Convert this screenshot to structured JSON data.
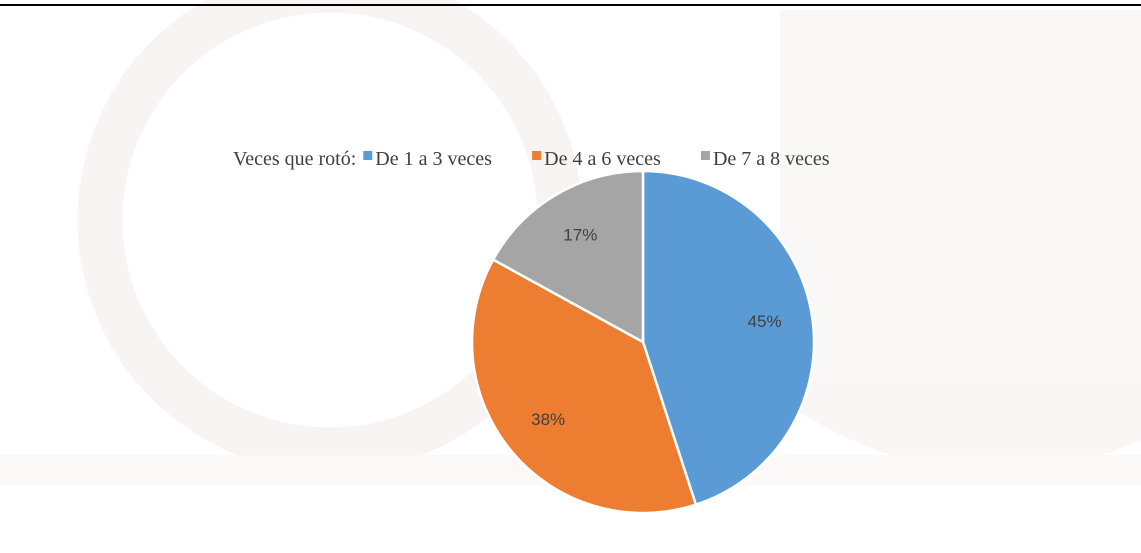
{
  "chart_data": {
    "type": "pie",
    "legend_title": "Veces que rotó:",
    "categories": [
      "De 1 a 3 veces",
      "De 4 a 6 veces",
      "De 7 a 8 veces"
    ],
    "values": [
      45,
      38,
      17
    ],
    "value_labels": [
      "45%",
      "38%",
      "17%"
    ],
    "colors": [
      "#5b9bd5",
      "#ed7d31",
      "#a5a5a5"
    ],
    "legend": "top"
  }
}
